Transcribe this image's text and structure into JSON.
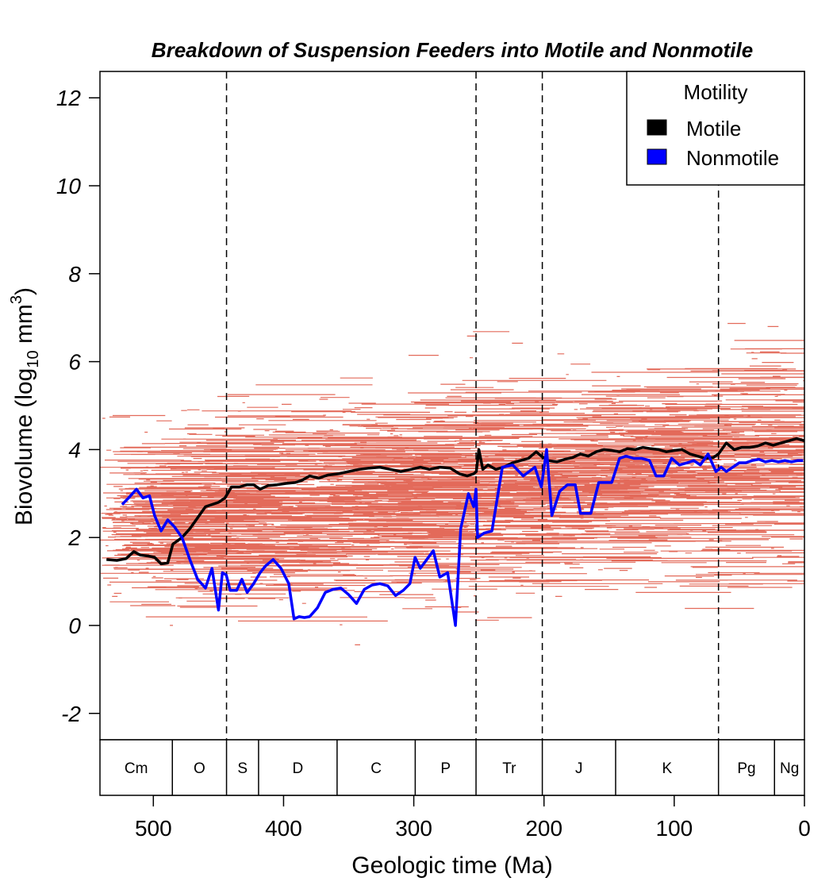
{
  "chart_data": {
    "type": "line",
    "title": "Breakdown of Suspension Feeders into Motile and Nonmotile",
    "xlabel": "Geologic time (Ma)",
    "ylabel": {
      "main": "Biovolume (log",
      "sub": "10",
      "unit": " mm",
      "sup": "3",
      "close": ")"
    },
    "xlim": [
      541,
      0
    ],
    "ylim": [
      -2.6,
      12.6
    ],
    "x_ticks": [
      500,
      400,
      300,
      200,
      100,
      0
    ],
    "y_ticks": [
      -2,
      0,
      2,
      4,
      6,
      8,
      10,
      12
    ],
    "y_tick_labels": [
      "-2",
      "0",
      "2",
      "4",
      "6",
      "8",
      "10",
      "12"
    ],
    "x_tick_labels": [
      "500",
      "400",
      "300",
      "200",
      "100",
      "0"
    ],
    "extinction_lines": [
      443.8,
      252.2,
      201.3,
      66.0
    ],
    "periods": [
      {
        "label": "Cm",
        "start": 541,
        "end": 485.4
      },
      {
        "label": "O",
        "start": 485.4,
        "end": 443.8
      },
      {
        "label": "S",
        "start": 443.8,
        "end": 419.2
      },
      {
        "label": "D",
        "start": 419.2,
        "end": 358.9
      },
      {
        "label": "C",
        "start": 358.9,
        "end": 298.9
      },
      {
        "label": "P",
        "start": 298.9,
        "end": 252.2
      },
      {
        "label": "Tr",
        "start": 252.2,
        "end": 201.3
      },
      {
        "label": "J",
        "start": 201.3,
        "end": 145.0
      },
      {
        "label": "K",
        "start": 145.0,
        "end": 66.0
      },
      {
        "label": "Pg",
        "start": 66.0,
        "end": 23.0
      },
      {
        "label": "Ng",
        "start": 23.0,
        "end": 0
      }
    ],
    "legend": {
      "title": "Motility",
      "position": "top-right",
      "entries": [
        {
          "label": "Motile",
          "color": "#000000"
        },
        {
          "label": "Nonmotile",
          "color": "#0000ff"
        }
      ]
    },
    "range_color": "#e05a48",
    "series": [
      {
        "name": "Motile",
        "color": "#000000",
        "x": [
          536,
          528,
          521,
          515,
          510,
          504,
          499,
          494,
          489,
          485,
          478,
          472,
          466,
          460,
          455,
          450,
          445,
          440,
          434,
          428,
          423,
          418,
          412,
          405,
          398,
          391,
          386,
          380,
          373,
          366,
          358,
          350,
          342,
          334,
          326,
          318,
          310,
          302,
          295,
          288,
          280,
          272,
          265,
          259,
          254,
          252,
          250,
          247,
          243,
          237,
          231,
          224,
          218,
          212,
          206,
          202,
          197,
          190,
          184,
          178,
          172,
          166,
          160,
          154,
          148,
          142,
          136,
          130,
          124,
          118,
          112,
          106,
          100,
          94,
          88,
          82,
          76,
          70,
          66,
          60,
          54,
          48,
          42,
          36,
          30,
          24,
          18,
          12,
          6,
          0
        ],
        "y": [
          1.5,
          1.48,
          1.52,
          1.68,
          1.6,
          1.58,
          1.55,
          1.4,
          1.42,
          1.85,
          2.0,
          2.2,
          2.45,
          2.7,
          2.75,
          2.8,
          2.9,
          3.15,
          3.15,
          3.2,
          3.2,
          3.1,
          3.18,
          3.2,
          3.23,
          3.25,
          3.3,
          3.4,
          3.35,
          3.42,
          3.45,
          3.5,
          3.55,
          3.58,
          3.6,
          3.55,
          3.5,
          3.55,
          3.6,
          3.55,
          3.6,
          3.58,
          3.45,
          3.4,
          3.45,
          3.5,
          4.0,
          3.55,
          3.65,
          3.55,
          3.6,
          3.7,
          3.75,
          3.8,
          3.95,
          3.85,
          3.75,
          3.72,
          3.78,
          3.82,
          3.9,
          3.85,
          3.95,
          4.0,
          3.98,
          3.95,
          4.02,
          4.0,
          4.05,
          4.02,
          4.0,
          3.95,
          3.98,
          4.0,
          3.9,
          3.85,
          3.8,
          3.82,
          3.9,
          4.15,
          4.0,
          4.05,
          4.05,
          4.08,
          4.15,
          4.1,
          4.15,
          4.2,
          4.25,
          4.2
        ]
      },
      {
        "name": "Nonmotile",
        "color": "#0000ff",
        "x": [
          524,
          519,
          513,
          508,
          503,
          499,
          494,
          489,
          484,
          478,
          472,
          466,
          460,
          455,
          450,
          447,
          444,
          441,
          436,
          432,
          428,
          423,
          418,
          414,
          408,
          402,
          396,
          392,
          388,
          384,
          380,
          374,
          368,
          362,
          356,
          350,
          344,
          338,
          332,
          326,
          320,
          314,
          308,
          303,
          299,
          295,
          290,
          285,
          280,
          274,
          268,
          264,
          258,
          254,
          252.2,
          251,
          246,
          240,
          232,
          224,
          216,
          207,
          202,
          198,
          194,
          188,
          182,
          176,
          172,
          168,
          166,
          164,
          158,
          153,
          148,
          142,
          137,
          131,
          125,
          119,
          114,
          108,
          102,
          96,
          90,
          85,
          80,
          74,
          68,
          64,
          60,
          55,
          50,
          45,
          40,
          35,
          30,
          25,
          20,
          15,
          10,
          5,
          1
        ],
        "y": [
          2.75,
          2.9,
          3.1,
          2.9,
          2.95,
          2.5,
          2.15,
          2.4,
          2.25,
          2.0,
          1.5,
          1.05,
          0.85,
          1.3,
          0.35,
          1.2,
          1.15,
          0.8,
          0.8,
          1.05,
          0.75,
          0.95,
          1.2,
          1.35,
          1.5,
          1.3,
          0.95,
          0.15,
          0.2,
          0.18,
          0.2,
          0.4,
          0.75,
          0.82,
          0.85,
          0.7,
          0.5,
          0.82,
          0.92,
          0.95,
          0.9,
          0.68,
          0.8,
          0.95,
          1.55,
          1.3,
          1.5,
          1.7,
          1.1,
          1.2,
          0.0,
          2.2,
          3.0,
          2.7,
          3.1,
          2.0,
          2.1,
          2.15,
          3.6,
          3.65,
          3.4,
          3.6,
          3.15,
          4.0,
          2.5,
          3.05,
          3.2,
          3.2,
          2.55,
          2.55,
          2.55,
          2.55,
          3.25,
          3.25,
          3.25,
          3.8,
          3.85,
          3.8,
          3.8,
          3.75,
          3.4,
          3.4,
          3.8,
          3.65,
          3.7,
          3.75,
          3.65,
          3.9,
          3.5,
          3.6,
          3.5,
          3.6,
          3.7,
          3.7,
          3.75,
          3.78,
          3.72,
          3.75,
          3.72,
          3.75,
          3.72,
          3.75,
          3.75
        ]
      }
    ]
  }
}
